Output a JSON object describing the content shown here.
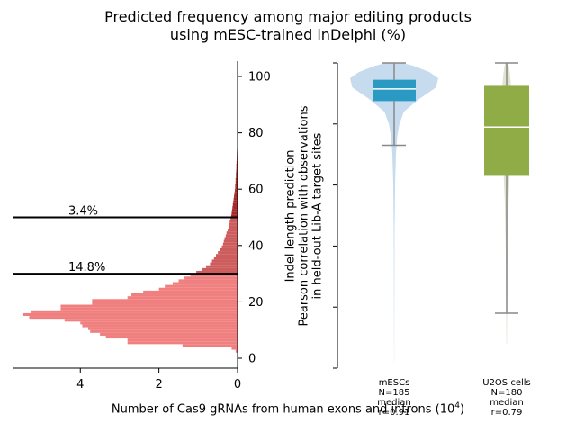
{
  "title_line1": "Predicted frequency among major editing products",
  "title_line2": "using mESC-trained inDelphi (%)",
  "chart_data": [
    {
      "type": "bar",
      "orientation": "horizontal histogram",
      "xlabel": "Number of Cas9 gRNAs from human exons and introns (10",
      "xlabel_exp": "4",
      "xlabel_tail": ")",
      "xlim": [
        5.7,
        0
      ],
      "xticks": [
        "4",
        "2",
        "0"
      ],
      "ylim": [
        -3,
        105
      ],
      "yticks": [
        "0",
        "20",
        "40",
        "60",
        "80",
        "100"
      ],
      "bin_width": 1,
      "bins": [
        [
          2,
          0.05
        ],
        [
          3,
          0.15
        ],
        [
          4,
          1.4
        ],
        [
          5,
          2.8
        ],
        [
          6,
          2.8
        ],
        [
          7,
          3.35
        ],
        [
          8,
          3.5
        ],
        [
          9,
          3.75
        ],
        [
          10,
          3.8
        ],
        [
          11,
          3.95
        ],
        [
          12,
          4.0
        ],
        [
          13,
          4.4
        ],
        [
          14,
          5.3
        ],
        [
          15,
          5.45
        ],
        [
          16,
          5.25
        ],
        [
          17,
          4.5
        ],
        [
          18,
          4.5
        ],
        [
          19,
          3.7
        ],
        [
          20,
          3.7
        ],
        [
          21,
          2.8
        ],
        [
          22,
          2.7
        ],
        [
          23,
          2.4
        ],
        [
          24,
          2.0
        ],
        [
          25,
          1.85
        ],
        [
          26,
          1.65
        ],
        [
          27,
          1.5
        ],
        [
          28,
          1.35
        ],
        [
          29,
          1.2
        ],
        [
          30,
          1.05
        ],
        [
          31,
          0.9
        ],
        [
          32,
          0.8
        ],
        [
          33,
          0.7
        ],
        [
          34,
          0.65
        ],
        [
          35,
          0.6
        ],
        [
          36,
          0.55
        ],
        [
          37,
          0.5
        ],
        [
          38,
          0.45
        ],
        [
          39,
          0.4
        ],
        [
          40,
          0.37
        ],
        [
          41,
          0.35
        ],
        [
          42,
          0.33
        ],
        [
          43,
          0.3
        ],
        [
          44,
          0.28
        ],
        [
          45,
          0.25
        ],
        [
          46,
          0.23
        ],
        [
          47,
          0.21
        ],
        [
          48,
          0.2
        ],
        [
          49,
          0.18
        ],
        [
          50,
          0.16
        ],
        [
          51,
          0.15
        ],
        [
          52,
          0.14
        ],
        [
          53,
          0.13
        ],
        [
          54,
          0.12
        ],
        [
          55,
          0.11
        ],
        [
          56,
          0.1
        ],
        [
          57,
          0.09
        ],
        [
          58,
          0.08
        ],
        [
          59,
          0.07
        ],
        [
          60,
          0.06
        ],
        [
          61,
          0.06
        ],
        [
          62,
          0.05
        ],
        [
          63,
          0.05
        ],
        [
          64,
          0.04
        ],
        [
          65,
          0.04
        ],
        [
          66,
          0.035
        ],
        [
          67,
          0.03
        ],
        [
          68,
          0.03
        ],
        [
          69,
          0.025
        ],
        [
          70,
          0.02
        ],
        [
          71,
          0.02
        ],
        [
          72,
          0.018
        ],
        [
          73,
          0.015
        ],
        [
          74,
          0.012
        ],
        [
          75,
          0.01
        ],
        [
          76,
          0.01
        ],
        [
          77,
          0.008
        ],
        [
          78,
          0.007
        ],
        [
          79,
          0.006
        ],
        [
          80,
          0.005
        ],
        [
          81,
          0.004
        ],
        [
          82,
          0.003
        ],
        [
          83,
          0.002
        ]
      ],
      "thresholds": [
        {
          "y": 30,
          "label": "14.8%"
        },
        {
          "y": 50,
          "label": "3.4%"
        }
      ],
      "colors": {
        "low": "#f08080",
        "mid": "#cd5c5c",
        "high": "#a52a2a"
      }
    },
    {
      "type": "violin+box",
      "ylabel_lines": [
        "Indel length prediction",
        "Pearson correlation with observations",
        "in held-out Lib-A target sites"
      ],
      "ylim": [
        0,
        1
      ],
      "yticks": [
        0,
        0.2,
        0.4,
        0.6,
        0.8,
        1.0
      ],
      "groups": [
        {
          "label_lines": [
            "mESCs",
            "N=185",
            "median",
            "r=0.91"
          ],
          "whisker_low": 0.73,
          "q1": 0.875,
          "median": 0.915,
          "q3": 0.945,
          "whisker_high": 1.0,
          "violin_color": "#c6dbed",
          "box_color": "#2b9ac3",
          "violin": [
            [
              0.02,
              0.002
            ],
            [
              0.2,
              0.005
            ],
            [
              0.45,
              0.01
            ],
            [
              0.6,
              0.02
            ],
            [
              0.7,
              0.04
            ],
            [
              0.76,
              0.07
            ],
            [
              0.8,
              0.12
            ],
            [
              0.84,
              0.22
            ],
            [
              0.88,
              0.55
            ],
            [
              0.92,
              0.95
            ],
            [
              0.95,
              1.0
            ],
            [
              0.97,
              0.8
            ],
            [
              0.99,
              0.45
            ],
            [
              1.0,
              0.2
            ]
          ]
        },
        {
          "label_lines": [
            "U2OS cells",
            "N=180",
            "median",
            "r=0.79"
          ],
          "whisker_low": 0.18,
          "q1": 0.63,
          "median": 0.79,
          "q3": 0.925,
          "whisker_high": 1.0,
          "violin_color": "#dfe3cf",
          "box_color": "#8fac47",
          "violin": [
            [
              0.08,
              0.01
            ],
            [
              0.2,
              0.02
            ],
            [
              0.4,
              0.04
            ],
            [
              0.55,
              0.08
            ],
            [
              0.65,
              0.13
            ],
            [
              0.75,
              0.17
            ],
            [
              0.8,
              0.19
            ],
            [
              0.86,
              0.21
            ],
            [
              0.92,
              0.18
            ],
            [
              0.96,
              0.14
            ],
            [
              0.99,
              0.09
            ],
            [
              1.0,
              0.05
            ]
          ]
        }
      ]
    }
  ]
}
